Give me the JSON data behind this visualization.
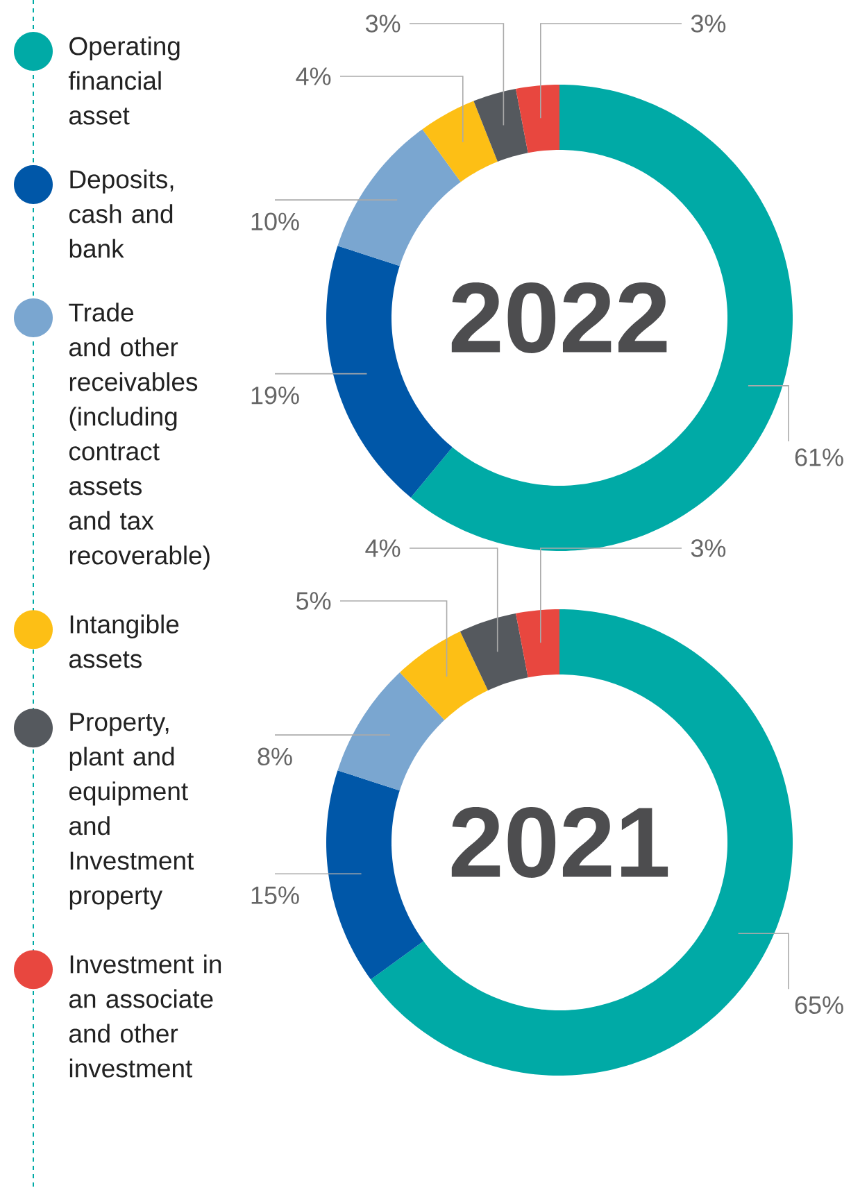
{
  "chart_data": [
    {
      "type": "donut",
      "title": "2022",
      "legend": "left",
      "categories": [
        "Operating financial asset",
        "Deposits, cash and bank",
        "Trade and other receivables (including contract assets and tax recoverable)",
        "Intangible assets",
        "Property, plant and equipment and Investment property",
        "Investment in an associate and other investment"
      ],
      "values": [
        61,
        19,
        10,
        4,
        3,
        3
      ],
      "value_labels": [
        "61%",
        "19%",
        "10%",
        "4%",
        "3%",
        "3%"
      ],
      "colors": [
        "#00aaa6",
        "#0057a8",
        "#7aa6d0",
        "#fdbf15",
        "#55595e",
        "#e8473f"
      ]
    },
    {
      "type": "donut",
      "title": "2021",
      "values": [
        65,
        15,
        8,
        5,
        4,
        3
      ],
      "categories": [
        null,
        null,
        null,
        null,
        null,
        null
      ],
      "value_labels": [
        "65%",
        "15%",
        "8%",
        "5%",
        "4%",
        "3%"
      ],
      "colors": [
        "#00aaa6",
        "#0057a8",
        "#7aa6d0",
        "#fdbf15",
        "#55595e",
        "#e8473f"
      ]
    }
  ]
}
